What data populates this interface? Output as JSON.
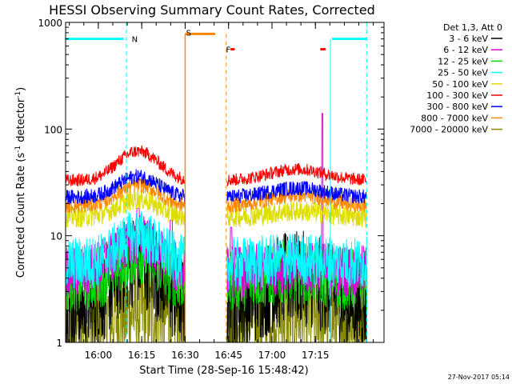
{
  "chart_data": {
    "type": "line",
    "title": "HESSI Observing Summary Count Rates, Corrected",
    "xlabel": "Start Time (28-Sep-16 15:48:42)",
    "ylabel_main": "Corrected Count Rate (s",
    "ylabel_sup1": "-1",
    "ylabel_mid": " detector",
    "ylabel_sup2": "-1",
    "ylabel_end": ")",
    "yscale": "log",
    "ylim": [
      1,
      1000
    ],
    "xlim_minutes": [
      0,
      110
    ],
    "x_ticks": [
      {
        "label": "16:00",
        "t": 11.3
      },
      {
        "label": "16:15",
        "t": 26.3
      },
      {
        "label": "16:30",
        "t": 41.3
      },
      {
        "label": "16:45",
        "t": 56.3
      },
      {
        "label": "17:00",
        "t": 71.3
      },
      {
        "label": "17:15",
        "t": 86.3
      }
    ],
    "y_ticks": [
      {
        "label": "1",
        "v": 1
      },
      {
        "label": "10",
        "v": 10
      },
      {
        "label": "100",
        "v": 100
      },
      {
        "label": "1000",
        "v": 1000
      }
    ],
    "legend_header": "Det 1,3, Att 0",
    "legend_position": "right",
    "gap_minutes": [
      41.3,
      55.8
    ],
    "series": [
      {
        "name": "3 - 6 keV",
        "color": "#000000",
        "level": 2.2,
        "peak1": 6.0,
        "peak2": 4.0,
        "noise": 0.45
      },
      {
        "name": "6 - 12 keV",
        "color": "#dd00dd",
        "level": 4.6,
        "peak1": 9.0,
        "peak2": 5.0,
        "noise": 0.25,
        "spike": 140
      },
      {
        "name": "12 - 25 keV",
        "color": "#00dd00",
        "level": 3.8,
        "peak1": 7.0,
        "peak2": 4.5,
        "noise": 0.3
      },
      {
        "name": "25 - 50 keV",
        "color": "#00ffff",
        "level": 5.5,
        "peak1": 10.0,
        "peak2": 6.0,
        "noise": 0.25
      },
      {
        "name": "50 - 100 keV",
        "color": "#dddd00",
        "level": 15.0,
        "peak1": 22.0,
        "peak2": 17.0,
        "noise": 0.1
      },
      {
        "name": "100 - 300 keV",
        "color": "#ff0000",
        "level": 33.0,
        "peak1": 62.0,
        "peak2": 42.0,
        "noise": 0.06
      },
      {
        "name": "300 - 800 keV",
        "color": "#0000ff",
        "level": 23.0,
        "peak1": 36.0,
        "peak2": 28.0,
        "noise": 0.07
      },
      {
        "name": "800 - 7000 keV",
        "color": "#ff8800",
        "level": 19.0,
        "peak1": 30.0,
        "peak2": 24.0,
        "noise": 0.07
      },
      {
        "name": "7000 - 20000 keV",
        "color": "#888800",
        "level": 1.7,
        "peak1": 2.0,
        "peak2": 1.9,
        "noise": 0.5
      }
    ],
    "annotations": [
      {
        "text": "N",
        "color": "#00ffff",
        "t": 22.0
      },
      {
        "text": "S",
        "color": "#ff8800",
        "t": 40.8
      },
      {
        "text": "F",
        "color": "#ff0000",
        "t": 54.6
      }
    ],
    "night_bars": [
      {
        "t0": 0,
        "t1": 20.0,
        "v": 700
      },
      {
        "t0": 92.0,
        "t1": 104.0,
        "v": 700
      }
    ],
    "night_dashed_lines": [
      21.0,
      104.0
    ],
    "night_solid_lines": [
      0,
      91.5
    ],
    "saa_bar": {
      "t0": 41.3,
      "t1": 51.7,
      "v": 780
    },
    "saa_solid_line": 41.3,
    "saa_dashed_line": 55.5,
    "flare_marks": [
      {
        "t0": 57.0,
        "t1": 58.4,
        "v": 560
      },
      {
        "t0": 88.0,
        "t1": 89.8,
        "v": 560
      }
    ]
  },
  "footer": {
    "timestamp": "27-Nov-2017 05:14"
  }
}
